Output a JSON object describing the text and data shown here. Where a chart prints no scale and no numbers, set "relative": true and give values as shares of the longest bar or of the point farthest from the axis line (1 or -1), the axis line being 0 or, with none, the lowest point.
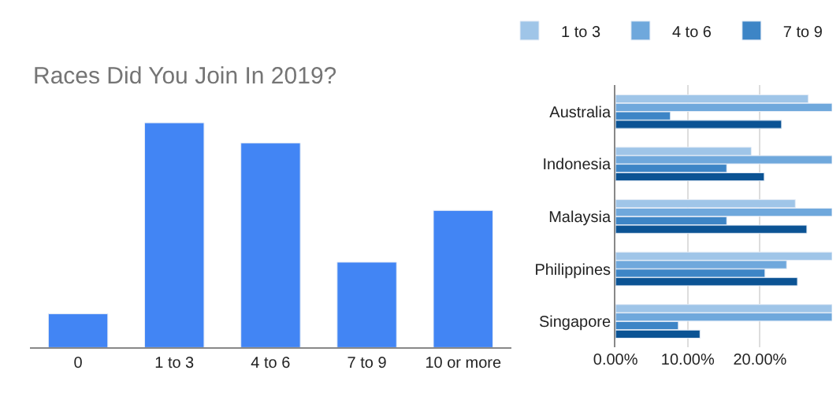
{
  "chart_data": [
    {
      "type": "bar",
      "title": "Races Did You Join In 2019?",
      "categories": [
        "0",
        "1 to 3",
        "4 to 6",
        "7 to 9",
        "10 or more"
      ],
      "values": [
        0.15,
        1,
        0.91,
        0.38,
        0.61
      ],
      "color": "#4285f4",
      "relative": true,
      "legend": false
    },
    {
      "type": "bar",
      "orientation": "horizontal",
      "categories": [
        "Australia",
        "Indonesia",
        "Malaysia",
        "Philippines",
        "Singapore"
      ],
      "series": [
        {
          "name": "1 to 3",
          "color": "#9fc5e8",
          "values": [
            26.7,
            18.8,
            24.9,
            30,
            30
          ]
        },
        {
          "name": "4 to 6",
          "color": "#6fa8dc",
          "values": [
            30,
            30,
            30,
            23.7,
            30
          ]
        },
        {
          "name": "7 to 9",
          "color": "#3d85c6",
          "values": [
            7.6,
            15.4,
            15.4,
            20.7,
            8.7
          ]
        },
        {
          "color": "#0b5394",
          "values": [
            23.0,
            20.6,
            26.5,
            25.2,
            11.7
          ]
        }
      ],
      "xlim": [
        0,
        30
      ],
      "xticks": [
        {
          "value": 0,
          "label": "0.00%"
        },
        {
          "value": 10,
          "label": "10.00%"
        },
        {
          "value": 20,
          "label": "20.00%"
        }
      ],
      "grid": "x",
      "legend": "top"
    }
  ]
}
